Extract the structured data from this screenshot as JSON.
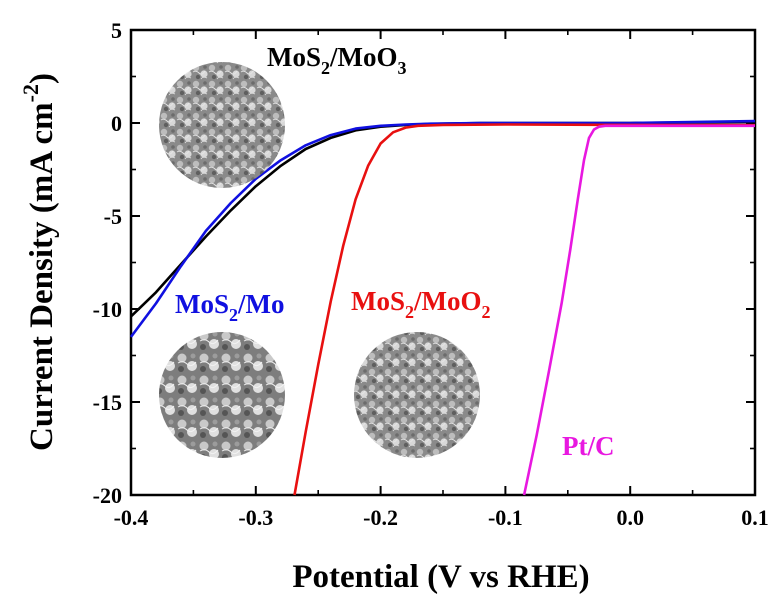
{
  "chart_data": {
    "type": "line",
    "xlabel": "Potential (V vs RHE)",
    "ylabel_main": "Current Density (mA cm",
    "ylabel_sup": "-2",
    "ylabel_end": ")",
    "xlim": [
      -0.4,
      0.1
    ],
    "ylim": [
      -20,
      5
    ],
    "xticks": [
      -0.4,
      -0.3,
      -0.2,
      -0.1,
      0.0,
      0.1
    ],
    "xtick_labels": [
      "-0.4",
      "-0.3",
      "-0.2",
      "-0.1",
      "0.0",
      "0.1"
    ],
    "yticks": [
      5,
      0,
      -5,
      -10,
      -15,
      -20
    ],
    "ytick_labels": [
      "5",
      "0",
      "-5",
      "-10",
      "-15",
      "-20"
    ],
    "series": [
      {
        "name_parts": [
          "MoS",
          "2",
          "/MoO",
          "3"
        ],
        "color": "#000000",
        "points": [
          [
            -0.4,
            -10.4
          ],
          [
            -0.38,
            -9.1
          ],
          [
            -0.36,
            -7.6
          ],
          [
            -0.34,
            -6.1
          ],
          [
            -0.32,
            -4.7
          ],
          [
            -0.3,
            -3.4
          ],
          [
            -0.28,
            -2.3
          ],
          [
            -0.26,
            -1.4
          ],
          [
            -0.24,
            -0.8
          ],
          [
            -0.22,
            -0.4
          ],
          [
            -0.2,
            -0.2
          ],
          [
            -0.18,
            -0.1
          ],
          [
            -0.16,
            -0.05
          ],
          [
            -0.12,
            0.0
          ],
          [
            0.0,
            0.0
          ],
          [
            0.1,
            0.05
          ]
        ]
      },
      {
        "name_parts": [
          "MoS",
          "2",
          "/Mo"
        ],
        "color": "#1010e0",
        "points": [
          [
            -0.4,
            -11.5
          ],
          [
            -0.38,
            -9.7
          ],
          [
            -0.36,
            -7.7
          ],
          [
            -0.34,
            -5.8
          ],
          [
            -0.32,
            -4.3
          ],
          [
            -0.3,
            -3.0
          ],
          [
            -0.28,
            -2.0
          ],
          [
            -0.26,
            -1.2
          ],
          [
            -0.24,
            -0.65
          ],
          [
            -0.22,
            -0.3
          ],
          [
            -0.2,
            -0.15
          ],
          [
            -0.18,
            -0.08
          ],
          [
            -0.16,
            -0.04
          ],
          [
            -0.12,
            0.0
          ],
          [
            0.0,
            0.0
          ],
          [
            0.1,
            0.1
          ]
        ]
      },
      {
        "name_parts": [
          "MoS",
          "2",
          "/MoO",
          "2"
        ],
        "color": "#e81010",
        "points": [
          [
            -0.269,
            -20.0
          ],
          [
            -0.26,
            -16.6
          ],
          [
            -0.25,
            -13.0
          ],
          [
            -0.24,
            -9.6
          ],
          [
            -0.23,
            -6.6
          ],
          [
            -0.22,
            -4.1
          ],
          [
            -0.21,
            -2.3
          ],
          [
            -0.2,
            -1.1
          ],
          [
            -0.19,
            -0.5
          ],
          [
            -0.18,
            -0.25
          ],
          [
            -0.17,
            -0.15
          ],
          [
            -0.15,
            -0.1
          ],
          [
            -0.1,
            -0.08
          ],
          [
            0.0,
            -0.1
          ],
          [
            0.1,
            -0.12
          ]
        ]
      },
      {
        "name_parts": [
          "Pt/C"
        ],
        "color": "#e818e0",
        "points": [
          [
            -0.085,
            -20.0
          ],
          [
            -0.075,
            -16.8
          ],
          [
            -0.065,
            -13.3
          ],
          [
            -0.055,
            -9.7
          ],
          [
            -0.048,
            -6.8
          ],
          [
            -0.042,
            -4.1
          ],
          [
            -0.037,
            -2.0
          ],
          [
            -0.033,
            -0.8
          ],
          [
            -0.029,
            -0.35
          ],
          [
            -0.025,
            -0.2
          ],
          [
            -0.02,
            -0.15
          ],
          [
            0.0,
            -0.15
          ],
          [
            0.1,
            -0.15
          ]
        ]
      }
    ],
    "insets": [
      {
        "caption_series": 0
      },
      {
        "caption_series": 1
      },
      {
        "caption_series": 2
      }
    ]
  }
}
